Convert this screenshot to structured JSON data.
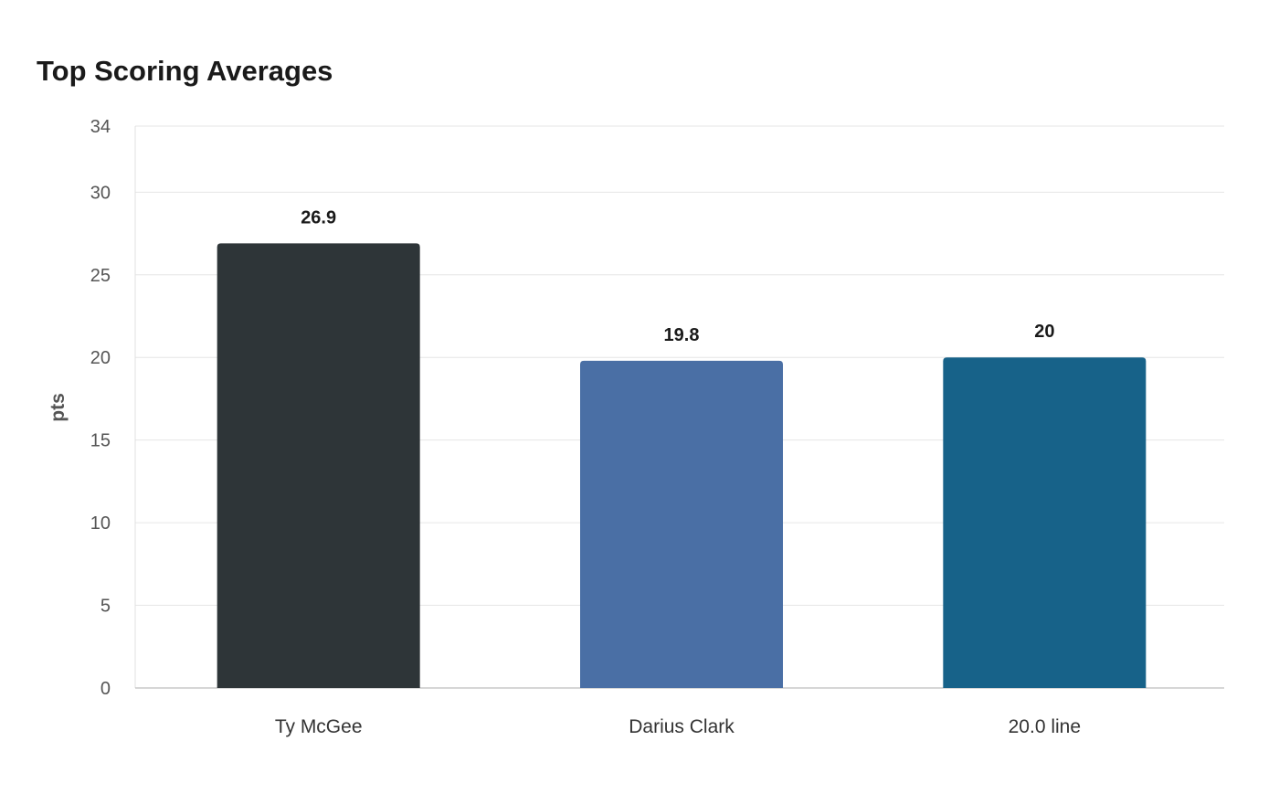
{
  "chart_data": {
    "type": "bar",
    "title": "Top Scoring Averages",
    "xlabel": "",
    "ylabel": "pts",
    "ylim": [
      0,
      34
    ],
    "yticks": [
      0,
      5,
      10,
      15,
      20,
      25,
      30,
      34
    ],
    "categories": [
      "Ty McGee",
      "Darius Clark",
      "20.0 line"
    ],
    "values": [
      26.9,
      19.8,
      20
    ],
    "value_labels": [
      "26.9",
      "19.8",
      "20"
    ],
    "colors": [
      "#2e3538",
      "#4a6fa5",
      "#176289"
    ],
    "grid": true,
    "legend": "none"
  }
}
